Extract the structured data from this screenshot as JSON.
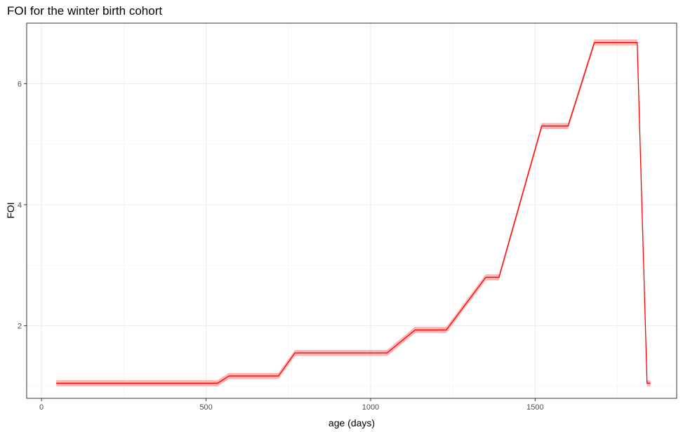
{
  "chart_data": {
    "type": "line",
    "title": "FOI for the winter birth cohort",
    "xlabel": "age (days)",
    "ylabel": "FOI",
    "xlim": [
      -45,
      1930
    ],
    "ylim": [
      0.8,
      7.0
    ],
    "xticks": [
      0,
      500,
      1000,
      1500
    ],
    "yticks": [
      2,
      4,
      6
    ],
    "x_minor_ticks": [
      250,
      750,
      1250,
      1750
    ],
    "y_minor_ticks": [
      1,
      3,
      5
    ],
    "grid": true,
    "line_color": "#ff0000",
    "ribbon_color": "#ff9999",
    "ribbon_halfwidth": 0.05,
    "series": [
      {
        "x": [
          45,
          535,
          570,
          720,
          770,
          1050,
          1135,
          1230,
          1350,
          1390,
          1520,
          1600,
          1680,
          1810,
          1840,
          1850
        ],
        "y": [
          1.05,
          1.05,
          1.17,
          1.17,
          1.55,
          1.55,
          1.93,
          1.93,
          2.8,
          2.8,
          5.3,
          5.3,
          6.68,
          6.68,
          1.05,
          1.05
        ]
      }
    ]
  }
}
